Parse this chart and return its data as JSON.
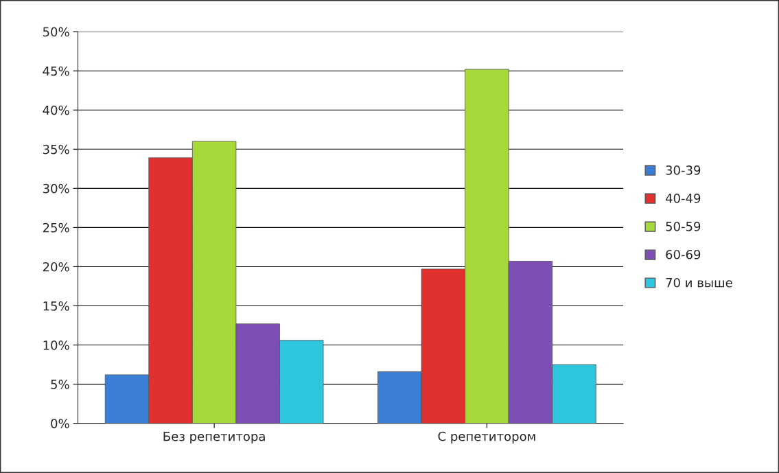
{
  "chart_data": {
    "type": "bar",
    "categories": [
      "Без репетитора",
      "С репетитором"
    ],
    "series": [
      {
        "name": "30-39",
        "color": "#3a7fd5",
        "values": [
          6.2,
          6.6
        ]
      },
      {
        "name": "40-49",
        "color": "#e03030",
        "values": [
          33.9,
          19.7
        ]
      },
      {
        "name": "50-59",
        "color": "#a6d83a",
        "values": [
          36.0,
          45.2
        ]
      },
      {
        "name": "60-69",
        "color": "#7d4fb5",
        "values": [
          12.7,
          20.7
        ]
      },
      {
        "name": "70 и выше",
        "color": "#2ec5de",
        "values": [
          10.6,
          7.5
        ]
      }
    ],
    "ylim": [
      0,
      50
    ],
    "yticks": [
      {
        "value": 0,
        "label": "0%"
      },
      {
        "value": 5,
        "label": "5%"
      },
      {
        "value": 10,
        "label": "10%"
      },
      {
        "value": 15,
        "label": "15%"
      },
      {
        "value": 20,
        "label": "20%"
      },
      {
        "value": 25,
        "label": "25%"
      },
      {
        "value": 30,
        "label": "30%"
      },
      {
        "value": 35,
        "label": "35%"
      },
      {
        "value": 40,
        "label": "40%"
      },
      {
        "value": 45,
        "label": "45%"
      },
      {
        "value": 50,
        "label": "50%"
      }
    ],
    "grid": "y",
    "legend": "right"
  }
}
